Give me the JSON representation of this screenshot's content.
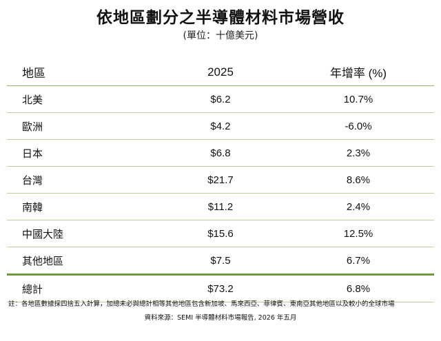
{
  "title": "依地區劃分之半導體材料市場營收",
  "subtitle": "(單位：十億美元)",
  "table": {
    "headers": [
      "地區",
      "2025",
      "年增率 (%)"
    ],
    "rows": [
      {
        "region": "北美",
        "value": "$6.2",
        "growth": "10.7%"
      },
      {
        "region": "歐洲",
        "value": "$4.2",
        "growth": "-6.0%"
      },
      {
        "region": "日本",
        "value": "$6.8",
        "growth": "2.3%"
      },
      {
        "region": "台灣",
        "value": "$21.7",
        "growth": "8.6%"
      },
      {
        "region": "南韓",
        "value": "$11.2",
        "growth": "2.4%"
      },
      {
        "region": "中國大陸",
        "value": "$15.6",
        "growth": "12.5%"
      },
      {
        "region": "其他地區",
        "value": "$7.5",
        "growth": "6.7%"
      }
    ],
    "total": {
      "region": "總計",
      "value": "$73.2",
      "growth": "6.8%"
    }
  },
  "note": "註：各地區數據採四捨五入計算，加總未必與總計相等其他地區包含新加坡、馬來西亞、菲律賓、東南亞其他地區以及較小的全球市場",
  "source": "資料來源：SEMI 半導體材料市場報告, 2026 年五月",
  "colors": {
    "rule_light": "#b9cf9b",
    "rule_header": "#8fb564",
    "rule_total": "#6a9a3a"
  }
}
